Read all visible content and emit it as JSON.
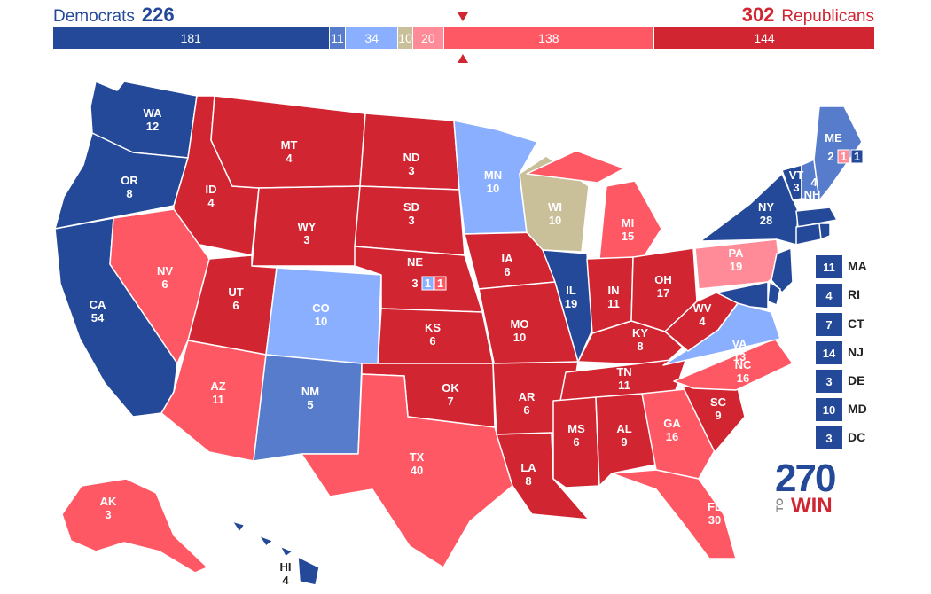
{
  "header": {
    "dem_label": "Democrats",
    "dem_total": "226",
    "rep_total": "302",
    "rep_label": "Republicans"
  },
  "colors": {
    "safe_d": "#244999",
    "likely_d": "#577ccc",
    "lean_d": "#8aafff",
    "tossup": "#c9c09a",
    "lean_r": "#ff8b98",
    "likely_r": "#ff5865",
    "safe_r": "#d22532"
  },
  "bar": [
    {
      "value": "181",
      "votes": 181,
      "rating": "safe_d"
    },
    {
      "value": "11",
      "votes": 11,
      "rating": "likely_d"
    },
    {
      "value": "34",
      "votes": 34,
      "rating": "lean_d"
    },
    {
      "value": "10",
      "votes": 10,
      "rating": "tossup"
    },
    {
      "value": "20",
      "votes": 20,
      "rating": "lean_r"
    },
    {
      "value": "138",
      "votes": 138,
      "rating": "likely_r"
    },
    {
      "value": "144",
      "votes": 144,
      "rating": "safe_r"
    }
  ],
  "states": {
    "WA": {
      "abbr": "WA",
      "ev": "12",
      "rating": "safe_d"
    },
    "OR": {
      "abbr": "OR",
      "ev": "8",
      "rating": "safe_d"
    },
    "CA": {
      "abbr": "CA",
      "ev": "54",
      "rating": "safe_d"
    },
    "ID": {
      "abbr": "ID",
      "ev": "4",
      "rating": "safe_r"
    },
    "NV": {
      "abbr": "NV",
      "ev": "6",
      "rating": "likely_r"
    },
    "MT": {
      "abbr": "MT",
      "ev": "4",
      "rating": "safe_r"
    },
    "WY": {
      "abbr": "WY",
      "ev": "3",
      "rating": "safe_r"
    },
    "UT": {
      "abbr": "UT",
      "ev": "6",
      "rating": "safe_r"
    },
    "AZ": {
      "abbr": "AZ",
      "ev": "11",
      "rating": "likely_r"
    },
    "CO": {
      "abbr": "CO",
      "ev": "10",
      "rating": "lean_d"
    },
    "NM": {
      "abbr": "NM",
      "ev": "5",
      "rating": "likely_d"
    },
    "ND": {
      "abbr": "ND",
      "ev": "3",
      "rating": "safe_r"
    },
    "SD": {
      "abbr": "SD",
      "ev": "3",
      "rating": "safe_r"
    },
    "NE": {
      "abbr": "NE",
      "ev": "3",
      "rating": "safe_r"
    },
    "KS": {
      "abbr": "KS",
      "ev": "6",
      "rating": "safe_r"
    },
    "OK": {
      "abbr": "OK",
      "ev": "7",
      "rating": "safe_r"
    },
    "TX": {
      "abbr": "TX",
      "ev": "40",
      "rating": "likely_r"
    },
    "MN": {
      "abbr": "MN",
      "ev": "10",
      "rating": "lean_d"
    },
    "IA": {
      "abbr": "IA",
      "ev": "6",
      "rating": "safe_r"
    },
    "MO": {
      "abbr": "MO",
      "ev": "10",
      "rating": "safe_r"
    },
    "AR": {
      "abbr": "AR",
      "ev": "6",
      "rating": "safe_r"
    },
    "LA": {
      "abbr": "LA",
      "ev": "8",
      "rating": "safe_r"
    },
    "WI": {
      "abbr": "WI",
      "ev": "10",
      "rating": "tossup"
    },
    "IL": {
      "abbr": "IL",
      "ev": "19",
      "rating": "safe_d"
    },
    "MI": {
      "abbr": "MI",
      "ev": "15",
      "rating": "likely_r"
    },
    "IN": {
      "abbr": "IN",
      "ev": "11",
      "rating": "safe_r"
    },
    "OH": {
      "abbr": "OH",
      "ev": "17",
      "rating": "safe_r"
    },
    "KY": {
      "abbr": "KY",
      "ev": "8",
      "rating": "safe_r"
    },
    "TN": {
      "abbr": "TN",
      "ev": "11",
      "rating": "safe_r"
    },
    "MS": {
      "abbr": "MS",
      "ev": "6",
      "rating": "safe_r"
    },
    "AL": {
      "abbr": "AL",
      "ev": "9",
      "rating": "safe_r"
    },
    "GA": {
      "abbr": "GA",
      "ev": "16",
      "rating": "likely_r"
    },
    "FL": {
      "abbr": "FL",
      "ev": "30",
      "rating": "likely_r"
    },
    "SC": {
      "abbr": "SC",
      "ev": "9",
      "rating": "safe_r"
    },
    "NC": {
      "abbr": "NC",
      "ev": "16",
      "rating": "likely_r"
    },
    "VA": {
      "abbr": "VA",
      "ev": "13",
      "rating": "lean_d"
    },
    "WV": {
      "abbr": "WV",
      "ev": "4",
      "rating": "safe_r"
    },
    "PA": {
      "abbr": "PA",
      "ev": "19",
      "rating": "lean_r"
    },
    "NY": {
      "abbr": "NY",
      "ev": "28",
      "rating": "safe_d"
    },
    "VT": {
      "abbr": "VT",
      "ev": "3",
      "rating": "safe_d"
    },
    "NH": {
      "abbr": "NH",
      "ev": "4",
      "rating": "likely_d"
    },
    "ME": {
      "abbr": "ME",
      "ev": "2",
      "rating": "likely_d"
    },
    "AK": {
      "abbr": "AK",
      "ev": "3",
      "rating": "likely_r"
    },
    "HI": {
      "abbr": "HI",
      "ev": "4",
      "rating": "safe_d"
    }
  },
  "districts": {
    "ne_cd1": "1",
    "ne_cd2": "1",
    "me_cd1": "1",
    "me_cd2": "1"
  },
  "sidebar": [
    {
      "abbr": "MA",
      "ev": "11",
      "rating": "safe_d"
    },
    {
      "abbr": "RI",
      "ev": "4",
      "rating": "safe_d"
    },
    {
      "abbr": "CT",
      "ev": "7",
      "rating": "safe_d"
    },
    {
      "abbr": "NJ",
      "ev": "14",
      "rating": "safe_d"
    },
    {
      "abbr": "DE",
      "ev": "3",
      "rating": "safe_d"
    },
    {
      "abbr": "MD",
      "ev": "10",
      "rating": "safe_d"
    },
    {
      "abbr": "DC",
      "ev": "3",
      "rating": "safe_d"
    }
  ],
  "logo": {
    "number": "270",
    "to": "TO",
    "win": "WIN"
  }
}
